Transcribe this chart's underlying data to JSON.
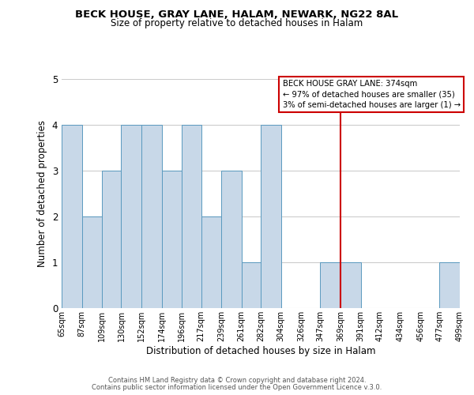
{
  "title1": "BECK HOUSE, GRAY LANE, HALAM, NEWARK, NG22 8AL",
  "title2": "Size of property relative to detached houses in Halam",
  "xlabel": "Distribution of detached houses by size in Halam",
  "ylabel": "Number of detached properties",
  "bin_edges": [
    65,
    87,
    109,
    130,
    152,
    174,
    196,
    217,
    239,
    261,
    282,
    304,
    326,
    347,
    369,
    391,
    412,
    434,
    456,
    477,
    499
  ],
  "bar_heights": [
    4,
    2,
    3,
    4,
    4,
    3,
    4,
    2,
    3,
    1,
    4,
    0,
    0,
    1,
    1,
    0,
    0,
    0,
    0,
    1
  ],
  "bar_color": "#c8d8e8",
  "bar_edge_color": "#5a9abf",
  "grid_color": "#cccccc",
  "vline_x": 369,
  "vline_color": "#cc0000",
  "ylim": [
    0,
    5
  ],
  "yticks": [
    0,
    1,
    2,
    3,
    4,
    5
  ],
  "annotation_title": "BECK HOUSE GRAY LANE: 374sqm",
  "annotation_line1": "← 97% of detached houses are smaller (35)",
  "annotation_line2": "3% of semi-detached houses are larger (1) →",
  "annotation_box_color": "#cc0000",
  "footer1": "Contains HM Land Registry data © Crown copyright and database right 2024.",
  "footer2": "Contains public sector information licensed under the Open Government Licence v.3.0."
}
